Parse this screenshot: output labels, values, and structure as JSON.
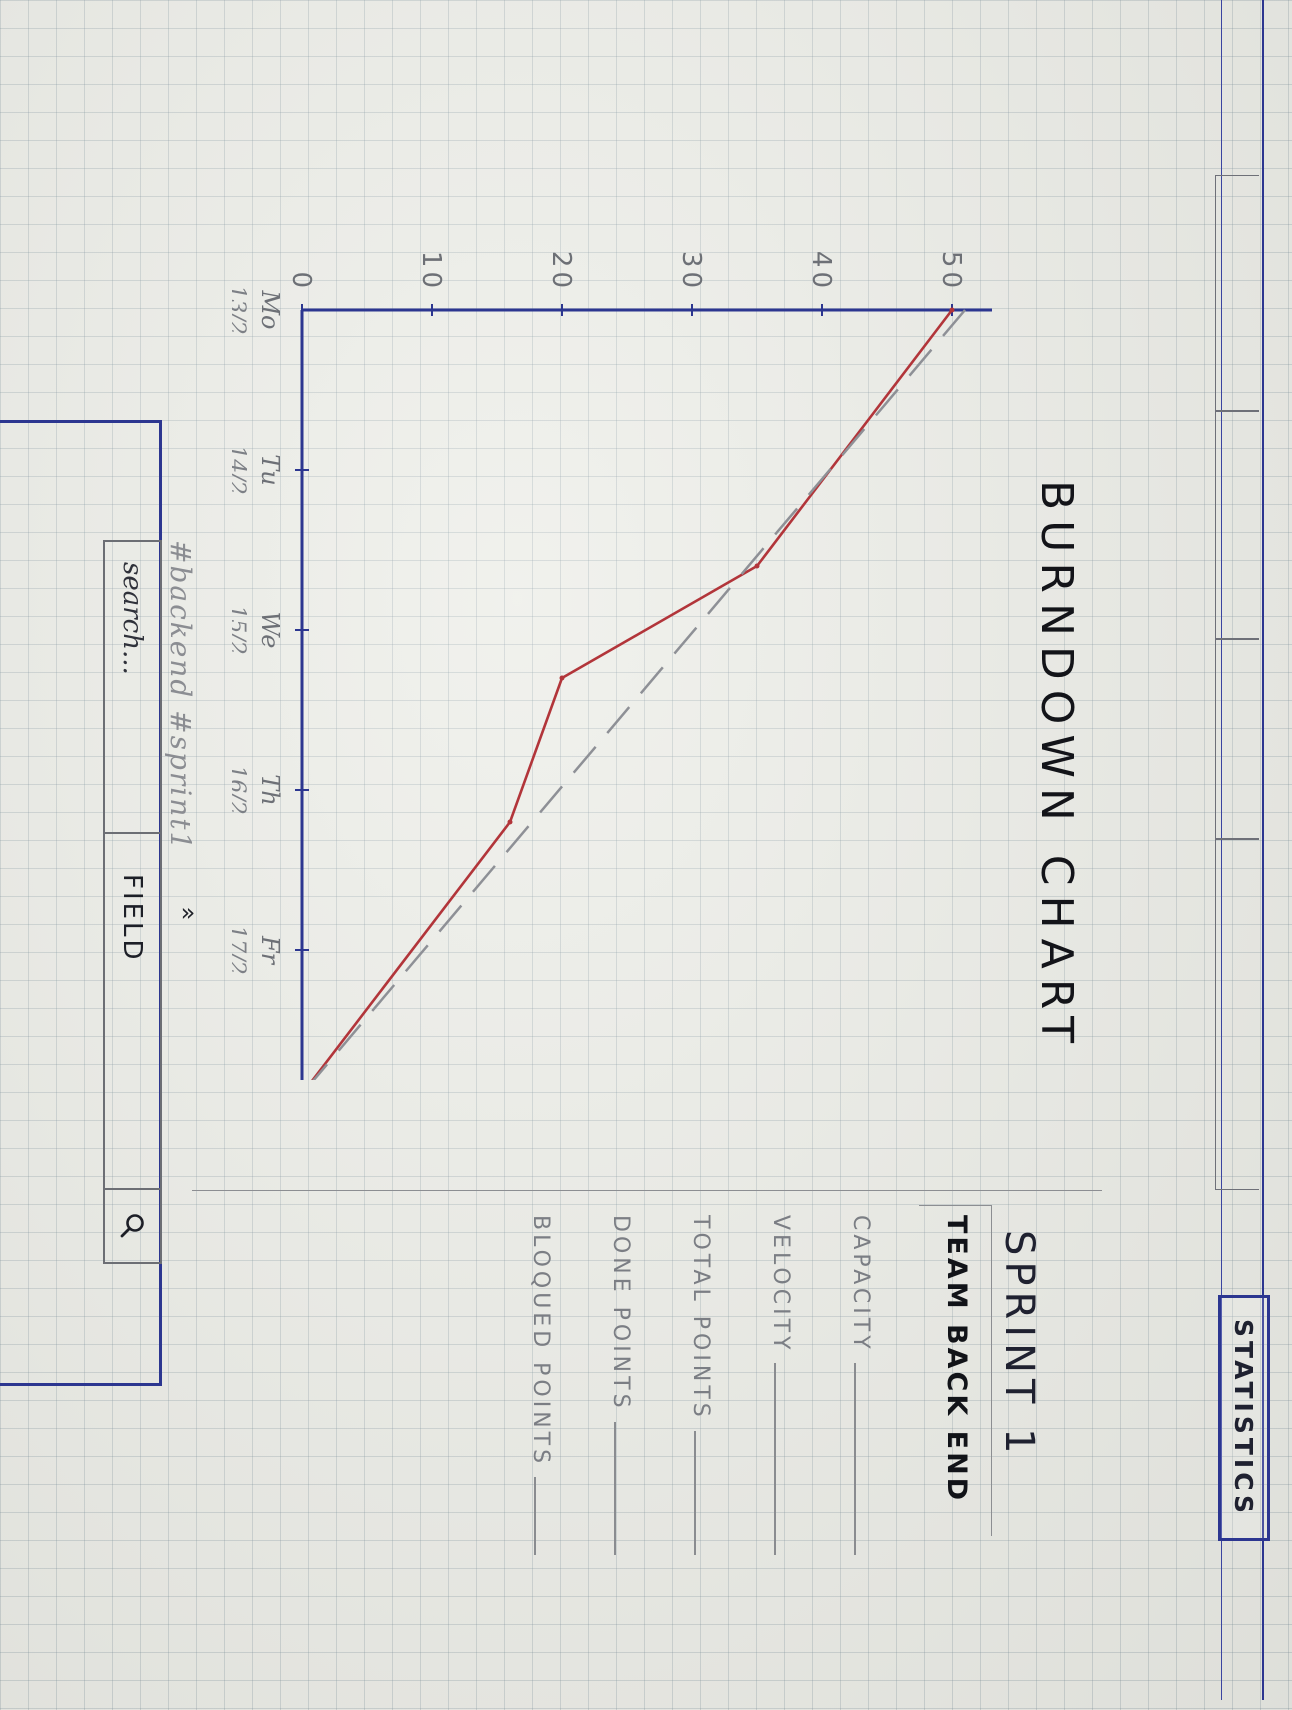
{
  "tabs": [
    {
      "label": ""
    },
    {
      "label": ""
    },
    {
      "label": ""
    },
    {
      "label": ""
    },
    {
      "label": "STATISTICS",
      "active": true
    }
  ],
  "info_panel": {
    "title": "SPRINT 1",
    "team": "TEAM BACK END",
    "stats": [
      {
        "label": "CAPACITY",
        "value": ""
      },
      {
        "label": "VELOCITY",
        "value": ""
      },
      {
        "label": "TOTAL POINTS",
        "value": ""
      },
      {
        "label": "DONE POINTS",
        "value": ""
      },
      {
        "label": "BLOQUED POINTS",
        "value": ""
      }
    ]
  },
  "chart_data": {
    "type": "line",
    "title": "BURNDOWN CHART",
    "x": [
      "Mo 13/2",
      "Tu 14/2",
      "We 15/2",
      "Th 16/2",
      "Fr 17/2"
    ],
    "x_ticks": [
      {
        "day": "Mo",
        "date": "13/2"
      },
      {
        "day": "Tu",
        "date": "14/2"
      },
      {
        "day": "We",
        "date": "15/2"
      },
      {
        "day": "Th",
        "date": "16/2"
      },
      {
        "day": "Fr",
        "date": "17/2"
      }
    ],
    "y_ticks": [
      "0",
      "10",
      "20",
      "30",
      "40",
      "50"
    ],
    "ylim": [
      0,
      50
    ],
    "series": [
      {
        "name": "",
        "style": "solid",
        "color": "#b2353a",
        "x": [
          0,
          1.6,
          2.3,
          3.2,
          4.9
        ],
        "y": [
          50,
          35,
          20,
          16,
          0
        ]
      },
      {
        "name": "",
        "style": "dashed",
        "color": "#8e9096",
        "x": [
          0,
          4.9
        ],
        "y": [
          51,
          0
        ]
      }
    ]
  },
  "search": {
    "tags": "#backend #sprint1",
    "placeholder": "search...",
    "field_label": "FIELD",
    "button_icon": "search-icon"
  },
  "colors": {
    "ink_blue": "#2c3690",
    "burndown_red": "#b2353a",
    "ideal_grey": "#8e9096"
  }
}
